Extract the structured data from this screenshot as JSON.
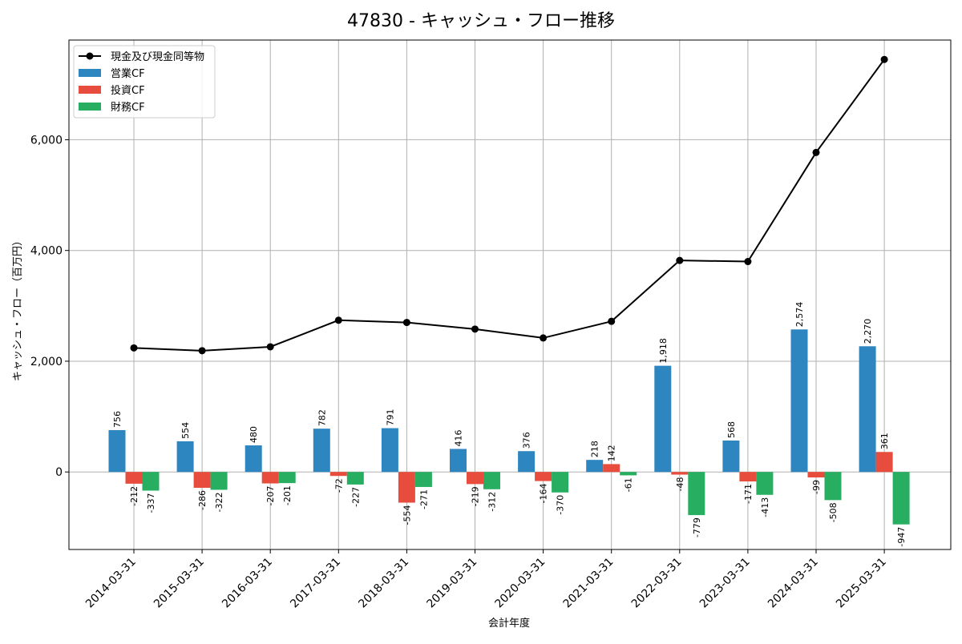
{
  "chart_data": {
    "type": "bar",
    "title": "47830 - キャッシュ・フロー推移",
    "xlabel": "会計年度",
    "ylabel": "キャッシュ・フロー（百万円）",
    "categories": [
      "2014-03-31",
      "2015-03-31",
      "2016-03-31",
      "2017-03-31",
      "2018-03-31",
      "2019-03-31",
      "2020-03-31",
      "2021-03-31",
      "2022-03-31",
      "2023-03-31",
      "2024-03-31",
      "2025-03-31"
    ],
    "ylim": [
      -1400,
      7800
    ],
    "yticks": [
      0,
      2000,
      4000,
      6000
    ],
    "ytick_labels": [
      "0",
      "2,000",
      "4,000",
      "6,000"
    ],
    "grid": true,
    "legend_position": "top-left",
    "series": [
      {
        "name": "営業CF",
        "kind": "bar",
        "color": "#2e86c1",
        "values": [
          756,
          554,
          480,
          782,
          791,
          416,
          376,
          218,
          1918,
          568,
          2574,
          2270
        ],
        "labels": [
          "756",
          "554",
          "480",
          "782",
          "791",
          "416",
          "376",
          "218",
          "1,918",
          "568",
          "2,574",
          "2,270"
        ]
      },
      {
        "name": "投資CF",
        "kind": "bar",
        "color": "#e74c3c",
        "values": [
          -212,
          -286,
          -207,
          -72,
          -554,
          -219,
          -164,
          142,
          -48,
          -171,
          -99,
          361
        ],
        "labels": [
          "-212",
          "-286",
          "-207",
          "-72",
          "-554",
          "-219",
          "-164",
          "142",
          "-48",
          "-171",
          "-99",
          "361"
        ]
      },
      {
        "name": "財務CF",
        "kind": "bar",
        "color": "#27ae60",
        "values": [
          -337,
          -322,
          -201,
          -227,
          -271,
          -312,
          -370,
          -61,
          -779,
          -413,
          -508,
          -947
        ],
        "labels": [
          "-337",
          "-322",
          "-201",
          "-227",
          "-271",
          "-312",
          "-370",
          "-61",
          "-779",
          "-413",
          "-508",
          "-947"
        ]
      },
      {
        "name": "現金及び現金同等物",
        "kind": "line",
        "color": "#000000",
        "values": [
          2240,
          2190,
          2260,
          2740,
          2700,
          2580,
          2420,
          2720,
          3820,
          3800,
          5770,
          7450
        ]
      }
    ]
  }
}
